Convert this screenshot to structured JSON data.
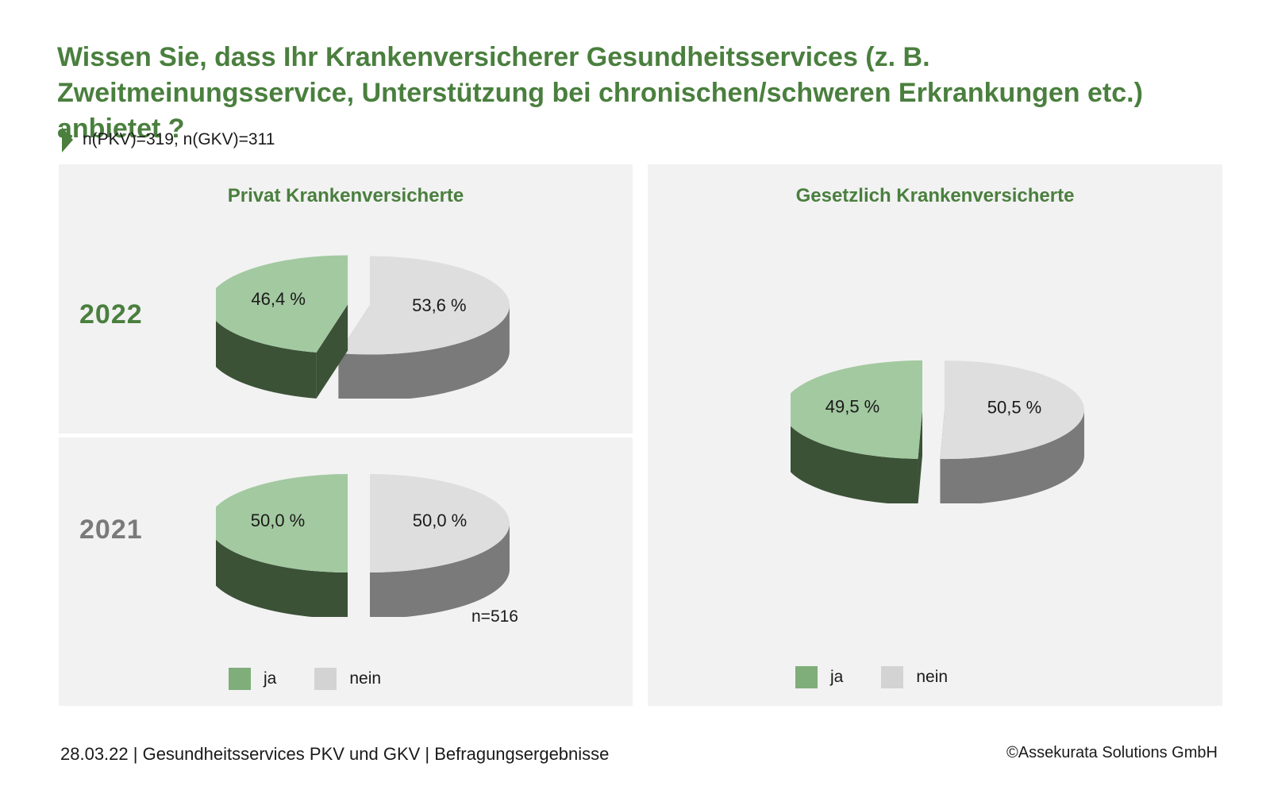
{
  "title": "Wissen Sie, dass Ihr Krankenversicherer Gesundheitsservices (z. B. Zweitmeinungsservice, Unterstützung bei chronischen/schweren Erkrankungen etc.) anbietet ?",
  "sample_note": "n(PKV)=319, n(GKV)=311",
  "colors": {
    "ja_top": "#a3c9a0",
    "ja_side": "#3b5237",
    "nein_top": "#dedede",
    "nein_side": "#7a7a7a",
    "legend_ja": "#7fae7b",
    "legend_nein": "#d3d3d3",
    "accent": "#4a7f3e"
  },
  "legend": {
    "ja": "ja",
    "nein": "nein"
  },
  "footer": {
    "left": "28.03.22 | Gesundheitsservices PKV und GKV | Befragungsergebnisse",
    "right": "©Assekurata Solutions GmbH"
  },
  "chart_data": [
    {
      "type": "pie",
      "title": "Privat Krankenversicherte",
      "row_label": "2022",
      "categories": [
        "ja",
        "nein"
      ],
      "values": [
        46.4,
        53.6
      ],
      "value_labels": [
        "46,4 %",
        "53,6 %"
      ]
    },
    {
      "type": "pie",
      "title": "Privat Krankenversicherte",
      "row_label": "2021",
      "categories": [
        "ja",
        "nein"
      ],
      "values": [
        50.0,
        50.0
      ],
      "value_labels": [
        "50,0 %",
        "50,0 %"
      ],
      "note": "n=516"
    },
    {
      "type": "pie",
      "title": "Gesetzlich Krankenversicherte",
      "categories": [
        "ja",
        "nein"
      ],
      "values": [
        49.5,
        50.5
      ],
      "value_labels": [
        "49,5 %",
        "50,5 %"
      ]
    }
  ]
}
